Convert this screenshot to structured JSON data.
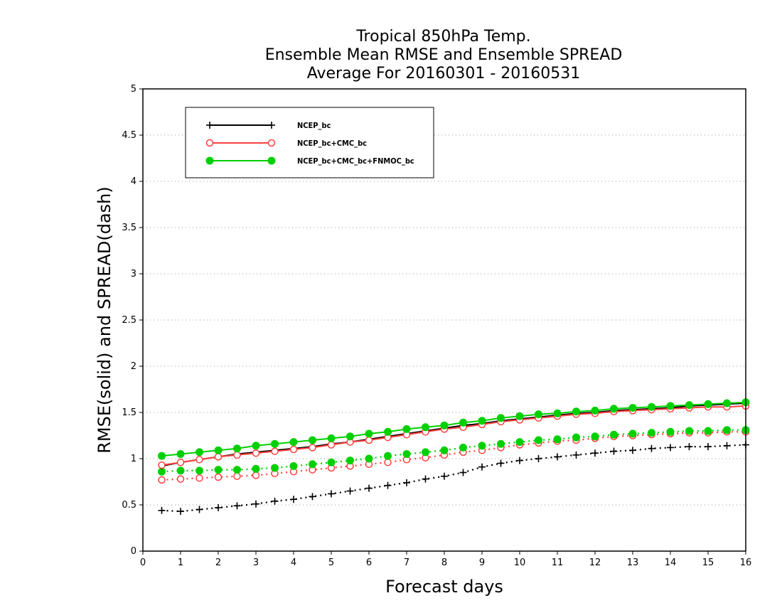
{
  "chart_data": {
    "type": "line",
    "title": [
      "Tropical 850hPa Temp.",
      "Ensemble Mean RMSE and Ensemble SPREAD",
      "Average For 20160301 - 20160531"
    ],
    "xlabel": "Forecast days",
    "ylabel": "RMSE(solid) and SPREAD(dash)",
    "xlim": [
      0,
      16
    ],
    "ylim": [
      0,
      5
    ],
    "xticks": [
      "0",
      "1",
      "2",
      "3",
      "4",
      "5",
      "6",
      "7",
      "8",
      "9",
      "10",
      "11",
      "12",
      "13",
      "14",
      "15",
      "16"
    ],
    "yticks": [
      "0",
      "0.5",
      "1",
      "1.5",
      "2",
      "2.5",
      "3",
      "3.5",
      "4",
      "4.5",
      "5"
    ],
    "grid": "horizontal dotted",
    "legend_position": "upper-left",
    "x": [
      0.5,
      1,
      1.5,
      2,
      2.5,
      3,
      3.5,
      4,
      4.5,
      5,
      5.5,
      6,
      6.5,
      7,
      7.5,
      8,
      8.5,
      9,
      9.5,
      10,
      10.5,
      11,
      11.5,
      12,
      12.5,
      13,
      13.5,
      14,
      14.5,
      15,
      15.5,
      16
    ],
    "series": [
      {
        "name": "NCEP_bc",
        "color": "#000000",
        "marker": "plus",
        "rmse": [
          0.92,
          0.96,
          0.99,
          1.02,
          1.05,
          1.07,
          1.09,
          1.11,
          1.13,
          1.16,
          1.18,
          1.21,
          1.24,
          1.27,
          1.3,
          1.33,
          1.36,
          1.38,
          1.41,
          1.43,
          1.45,
          1.47,
          1.49,
          1.5,
          1.52,
          1.53,
          1.54,
          1.55,
          1.57,
          1.58,
          1.59,
          1.6
        ],
        "spread": [
          0.44,
          0.43,
          0.45,
          0.47,
          0.49,
          0.51,
          0.54,
          0.56,
          0.59,
          0.62,
          0.65,
          0.68,
          0.71,
          0.74,
          0.78,
          0.81,
          0.85,
          0.91,
          0.95,
          0.98,
          1.0,
          1.02,
          1.04,
          1.06,
          1.08,
          1.09,
          1.11,
          1.12,
          1.13,
          1.13,
          1.14,
          1.15
        ]
      },
      {
        "name": "NCEP_bc+CMC_bc",
        "color": "#ff4040",
        "marker": "open-circle",
        "rmse": [
          0.93,
          0.96,
          0.99,
          1.02,
          1.04,
          1.06,
          1.08,
          1.1,
          1.12,
          1.15,
          1.18,
          1.2,
          1.23,
          1.26,
          1.29,
          1.32,
          1.34,
          1.37,
          1.4,
          1.42,
          1.44,
          1.46,
          1.48,
          1.49,
          1.51,
          1.52,
          1.53,
          1.54,
          1.55,
          1.56,
          1.56,
          1.57
        ],
        "spread": [
          0.77,
          0.78,
          0.79,
          0.8,
          0.81,
          0.82,
          0.84,
          0.86,
          0.88,
          0.9,
          0.92,
          0.94,
          0.96,
          0.99,
          1.01,
          1.04,
          1.07,
          1.09,
          1.12,
          1.15,
          1.17,
          1.19,
          1.2,
          1.22,
          1.24,
          1.25,
          1.26,
          1.27,
          1.28,
          1.28,
          1.29,
          1.29
        ]
      },
      {
        "name": "NCEP_bc+CMC_bc+FNMOC_bc",
        "color": "#00d000",
        "marker": "filled-circle",
        "rmse": [
          1.03,
          1.05,
          1.07,
          1.09,
          1.11,
          1.14,
          1.16,
          1.18,
          1.2,
          1.22,
          1.24,
          1.27,
          1.29,
          1.32,
          1.34,
          1.36,
          1.39,
          1.41,
          1.44,
          1.46,
          1.48,
          1.49,
          1.51,
          1.52,
          1.54,
          1.55,
          1.56,
          1.57,
          1.58,
          1.59,
          1.6,
          1.61
        ],
        "spread": [
          0.86,
          0.87,
          0.87,
          0.88,
          0.88,
          0.89,
          0.9,
          0.92,
          0.94,
          0.96,
          0.98,
          1.0,
          1.03,
          1.05,
          1.07,
          1.09,
          1.12,
          1.14,
          1.16,
          1.18,
          1.2,
          1.21,
          1.23,
          1.24,
          1.26,
          1.27,
          1.28,
          1.29,
          1.3,
          1.3,
          1.31,
          1.31
        ]
      }
    ]
  }
}
